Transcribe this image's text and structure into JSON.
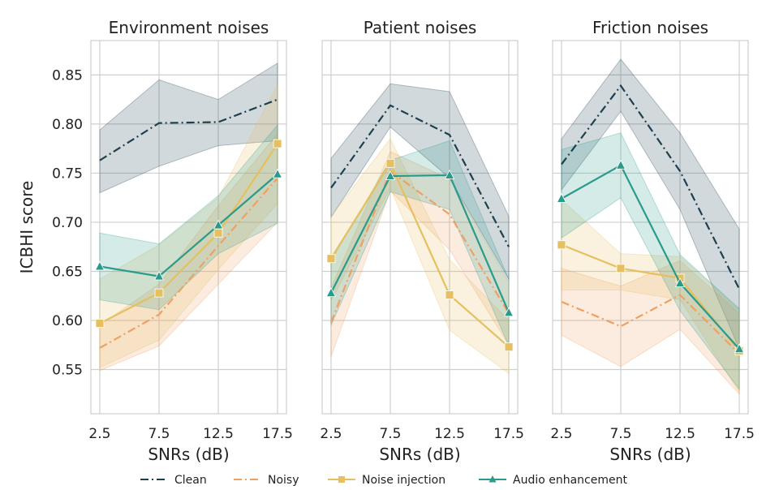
{
  "chart_data": {
    "type": "line",
    "ylabel": "ICBHI score",
    "y_ticks": [
      "0.55",
      "0.60",
      "0.65",
      "0.70",
      "0.75",
      "0.80",
      "0.85"
    ],
    "ylim": [
      0.505,
      0.885
    ],
    "x": [
      2.5,
      7.5,
      12.5,
      17.5
    ],
    "x_tick_labels": [
      "2.5",
      "7.5",
      "12.5",
      "17.5"
    ],
    "xlim": [
      1.75,
      18.25
    ],
    "grid": true,
    "legend_position": "bottom-center",
    "legend": [
      {
        "series": "clean",
        "label": "Clean"
      },
      {
        "series": "noisy",
        "label": "Noisy"
      },
      {
        "series": "injection",
        "label": "Noise injection"
      },
      {
        "series": "enhancement",
        "label": "Audio enhancement"
      }
    ],
    "series_styles": {
      "clean": {
        "color": "#1f3f4f",
        "dash": "dash-dot",
        "marker": "none"
      },
      "noisy": {
        "color": "#f0a060",
        "dash": "dash-dot",
        "marker": "none"
      },
      "injection": {
        "color": "#e6bf5e",
        "dash": "solid",
        "marker": "square"
      },
      "enhancement": {
        "color": "#2a9a8a",
        "dash": "solid",
        "marker": "triangle"
      }
    },
    "panels": [
      {
        "title": "Environment noises",
        "xlabel": "SNRs (dB)",
        "series": {
          "clean": {
            "values": [
              0.763,
              0.801,
              0.802,
              0.825
            ],
            "lower": [
              0.73,
              0.757,
              0.778,
              0.783
            ],
            "upper": [
              0.794,
              0.845,
              0.825,
              0.862
            ]
          },
          "noisy": {
            "values": [
              0.572,
              0.606,
              0.676,
              0.745
            ],
            "lower": [
              0.549,
              0.574,
              0.637,
              0.7
            ],
            "upper": [
              0.595,
              0.637,
              0.717,
              0.79
            ]
          },
          "injection": {
            "values": [
              0.597,
              0.628,
              0.689,
              0.78
            ],
            "lower": [
              0.552,
              0.58,
              0.652,
              0.719
            ],
            "upper": [
              0.642,
              0.677,
              0.725,
              0.84
            ]
          },
          "enhancement": {
            "values": [
              0.655,
              0.645,
              0.697,
              0.749
            ],
            "lower": [
              0.621,
              0.611,
              0.668,
              0.699
            ],
            "upper": [
              0.689,
              0.678,
              0.727,
              0.799
            ]
          }
        }
      },
      {
        "title": "Patient noises",
        "xlabel": "SNRs (dB)",
        "series": {
          "clean": {
            "values": [
              0.735,
              0.819,
              0.789,
              0.675
            ],
            "lower": [
              0.705,
              0.797,
              0.745,
              0.642
            ],
            "upper": [
              0.765,
              0.841,
              0.833,
              0.706
            ]
          },
          "noisy": {
            "values": [
              0.598,
              0.752,
              0.708,
              0.607
            ],
            "lower": [
              0.563,
              0.732,
              0.672,
              0.575
            ],
            "upper": [
              0.633,
              0.772,
              0.744,
              0.639
            ]
          },
          "injection": {
            "values": [
              0.663,
              0.76,
              0.626,
              0.573
            ],
            "lower": [
              0.62,
              0.735,
              0.59,
              0.546
            ],
            "upper": [
              0.706,
              0.785,
              0.662,
              0.6
            ]
          },
          "enhancement": {
            "values": [
              0.628,
              0.747,
              0.748,
              0.608
            ],
            "lower": [
              0.595,
              0.731,
              0.713,
              0.574
            ],
            "upper": [
              0.661,
              0.763,
              0.783,
              0.642
            ]
          }
        }
      },
      {
        "title": "Friction noises",
        "xlabel": "SNRs (dB)",
        "series": {
          "clean": {
            "values": [
              0.759,
              0.839,
              0.752,
              0.632
            ],
            "lower": [
              0.733,
              0.813,
              0.713,
              0.571
            ],
            "upper": [
              0.785,
              0.866,
              0.791,
              0.693
            ]
          },
          "noisy": {
            "values": [
              0.619,
              0.594,
              0.626,
              0.566
            ],
            "lower": [
              0.585,
              0.553,
              0.591,
              0.525
            ],
            "upper": [
              0.653,
              0.635,
              0.661,
              0.607
            ]
          },
          "injection": {
            "values": [
              0.677,
              0.653,
              0.643,
              0.569
            ],
            "lower": [
              0.631,
              0.631,
              0.621,
              0.527
            ],
            "upper": [
              0.723,
              0.668,
              0.665,
              0.611
            ]
          },
          "enhancement": {
            "values": [
              0.724,
              0.758,
              0.638,
              0.571
            ],
            "lower": [
              0.684,
              0.725,
              0.61,
              0.53
            ],
            "upper": [
              0.774,
              0.791,
              0.667,
              0.612
            ]
          }
        }
      }
    ]
  }
}
